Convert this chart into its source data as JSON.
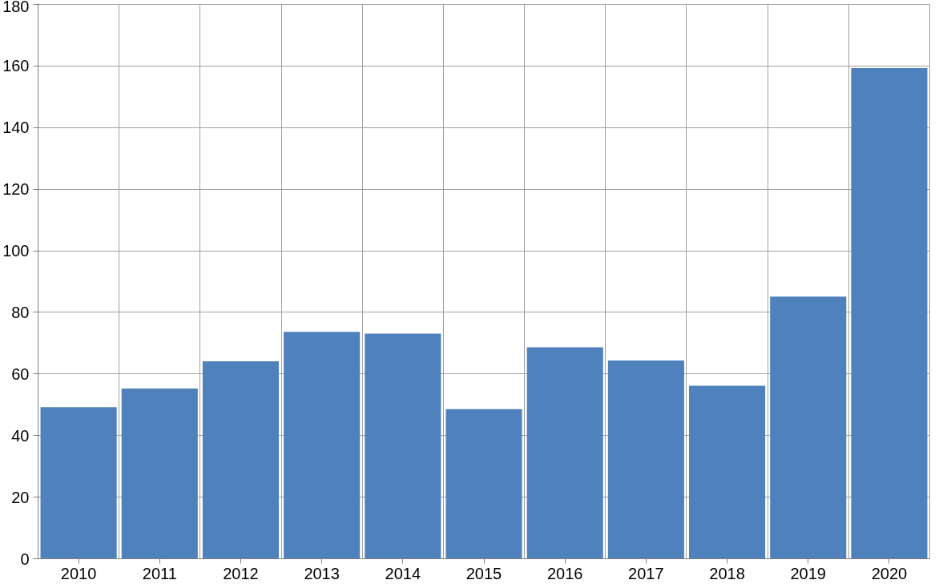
{
  "chart_data": {
    "type": "bar",
    "categories": [
      "2010",
      "2011",
      "2012",
      "2013",
      "2014",
      "2015",
      "2016",
      "2017",
      "2018",
      "2019",
      "2020"
    ],
    "values": [
      49.2,
      55.3,
      64.1,
      73.7,
      73.1,
      48.6,
      68.7,
      64.4,
      56.2,
      85.1,
      159.3
    ],
    "color": "#4f81bd",
    "ylim": [
      0,
      180
    ],
    "yticks": [
      0,
      20,
      40,
      60,
      80,
      100,
      120,
      140,
      160,
      180
    ],
    "grid": true
  }
}
